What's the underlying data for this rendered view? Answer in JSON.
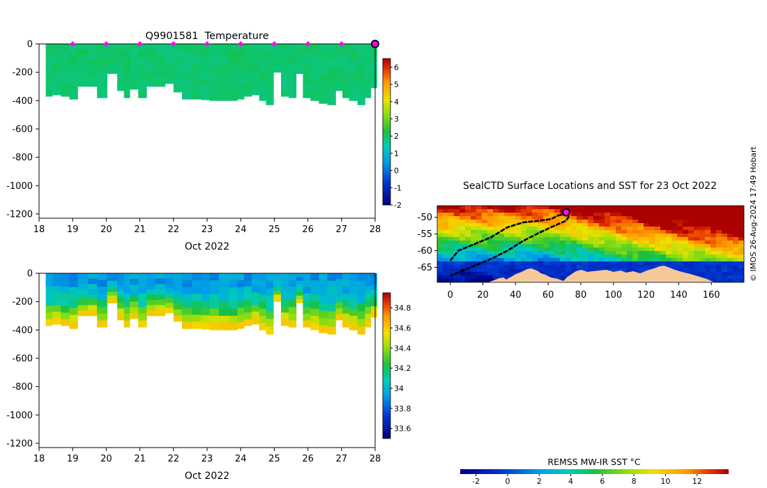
{
  "chart_data": [
    {
      "type": "heatmap",
      "title": "Q9901581  Temperature",
      "xlabel": "Oct 2022",
      "x_ticks": [
        "18",
        "19",
        "20",
        "21",
        "22",
        "23",
        "24",
        "25",
        "26",
        "27",
        "28"
      ],
      "xlim": [
        18,
        28
      ],
      "y_ticks": [
        "0",
        "-200",
        "-400",
        "-600",
        "-800",
        "-1000",
        "-1200"
      ],
      "ylim": [
        -1230,
        0
      ],
      "colorbar": {
        "ticks": [
          "-2",
          "-1",
          "0",
          "1",
          "2",
          "3",
          "4",
          "5",
          "6"
        ],
        "range": [
          -2,
          6.5
        ]
      },
      "profile_markers_x": [
        19,
        20,
        21,
        22,
        23,
        24,
        25,
        26,
        27
      ],
      "last_profile_x": 28,
      "value_range": [
        1.6,
        2.2
      ],
      "profiles": [
        {
          "t": 18.3,
          "depth": 370
        },
        {
          "t": 18.5,
          "depth": 360
        },
        {
          "t": 18.8,
          "depth": 370
        },
        {
          "t": 19.0,
          "depth": 390
        },
        {
          "t": 19.3,
          "depth": 300
        },
        {
          "t": 19.6,
          "depth": 300
        },
        {
          "t": 19.85,
          "depth": 380
        },
        {
          "t": 20.2,
          "depth": 210
        },
        {
          "t": 20.45,
          "depth": 330
        },
        {
          "t": 20.6,
          "depth": 380
        },
        {
          "t": 20.8,
          "depth": 320
        },
        {
          "t": 21.1,
          "depth": 380
        },
        {
          "t": 21.3,
          "depth": 300
        },
        {
          "t": 21.6,
          "depth": 300
        },
        {
          "t": 21.9,
          "depth": 280
        },
        {
          "t": 22.1,
          "depth": 340
        },
        {
          "t": 22.4,
          "depth": 390
        },
        {
          "t": 22.7,
          "depth": 390
        },
        {
          "t": 22.95,
          "depth": 395
        },
        {
          "t": 23.2,
          "depth": 400
        },
        {
          "t": 23.5,
          "depth": 400
        },
        {
          "t": 23.8,
          "depth": 400
        },
        {
          "t": 24.0,
          "depth": 390
        },
        {
          "t": 24.2,
          "depth": 370
        },
        {
          "t": 24.45,
          "depth": 360
        },
        {
          "t": 24.65,
          "depth": 400
        },
        {
          "t": 24.85,
          "depth": 430
        },
        {
          "t": 25.1,
          "depth": 200
        },
        {
          "t": 25.3,
          "depth": 370
        },
        {
          "t": 25.55,
          "depth": 380
        },
        {
          "t": 25.75,
          "depth": 210
        },
        {
          "t": 25.95,
          "depth": 380
        },
        {
          "t": 26.2,
          "depth": 400
        },
        {
          "t": 26.45,
          "depth": 420
        },
        {
          "t": 26.7,
          "depth": 430
        },
        {
          "t": 26.95,
          "depth": 330
        },
        {
          "t": 27.1,
          "depth": 380
        },
        {
          "t": 27.35,
          "depth": 400
        },
        {
          "t": 27.6,
          "depth": 430
        },
        {
          "t": 27.8,
          "depth": 380
        },
        {
          "t": 27.95,
          "depth": 310
        }
      ]
    },
    {
      "type": "heatmap",
      "title": "",
      "xlabel": "Oct 2022",
      "x_ticks": [
        "18",
        "19",
        "20",
        "21",
        "22",
        "23",
        "24",
        "25",
        "26",
        "27",
        "28"
      ],
      "xlim": [
        18,
        28
      ],
      "y_ticks": [
        "0",
        "-200",
        "-400",
        "-600",
        "-800",
        "-1000",
        "-1200"
      ],
      "ylim": [
        -1230,
        0
      ],
      "colorbar": {
        "ticks": [
          "33.6",
          "33.8",
          "34",
          "34.2",
          "34.4",
          "34.6",
          "34.8"
        ],
        "range": [
          33.5,
          34.95
        ]
      },
      "value_range": [
        33.85,
        34.6
      ]
    },
    {
      "type": "heatmap",
      "title": "SealCTD Surface Locations and SST for 23 Oct 2022",
      "x_ticks": [
        "0",
        "20",
        "40",
        "60",
        "80",
        "100",
        "120",
        "140",
        "160"
      ],
      "xlim": [
        -8,
        180
      ],
      "y_ticks": [
        "-50",
        "-55",
        "-60",
        "-65"
      ],
      "ylim": [
        -69.5,
        -46.5
      ],
      "colorbar": {
        "title": "REMSS MW-IR SST °C",
        "ticks": [
          "-2",
          "0",
          "2",
          "4",
          "6",
          "8",
          "10",
          "12"
        ],
        "range": [
          -3,
          14
        ]
      },
      "track": [
        [
          [
            0,
            -63
          ],
          [
            5,
            -60
          ],
          [
            15,
            -58
          ],
          [
            25,
            -56
          ],
          [
            35,
            -53
          ],
          [
            45,
            -51.5
          ],
          [
            55,
            -51
          ],
          [
            62,
            -50.5
          ],
          [
            66,
            -49.5
          ],
          [
            70,
            -48.8
          ]
        ],
        [
          [
            70,
            -48.8
          ],
          [
            73,
            -49.5
          ],
          [
            71,
            -51
          ],
          [
            64,
            -52.5
          ],
          [
            55,
            -54.5
          ],
          [
            45,
            -57
          ],
          [
            35,
            -60
          ],
          [
            25,
            -62.5
          ],
          [
            15,
            -64.5
          ],
          [
            5,
            -66.5
          ],
          [
            0,
            -67.5
          ]
        ]
      ],
      "current_location": [
        71,
        -48.5
      ]
    }
  ],
  "credit": "© IMOS 26-Aug-2024 17:49 Hobart"
}
